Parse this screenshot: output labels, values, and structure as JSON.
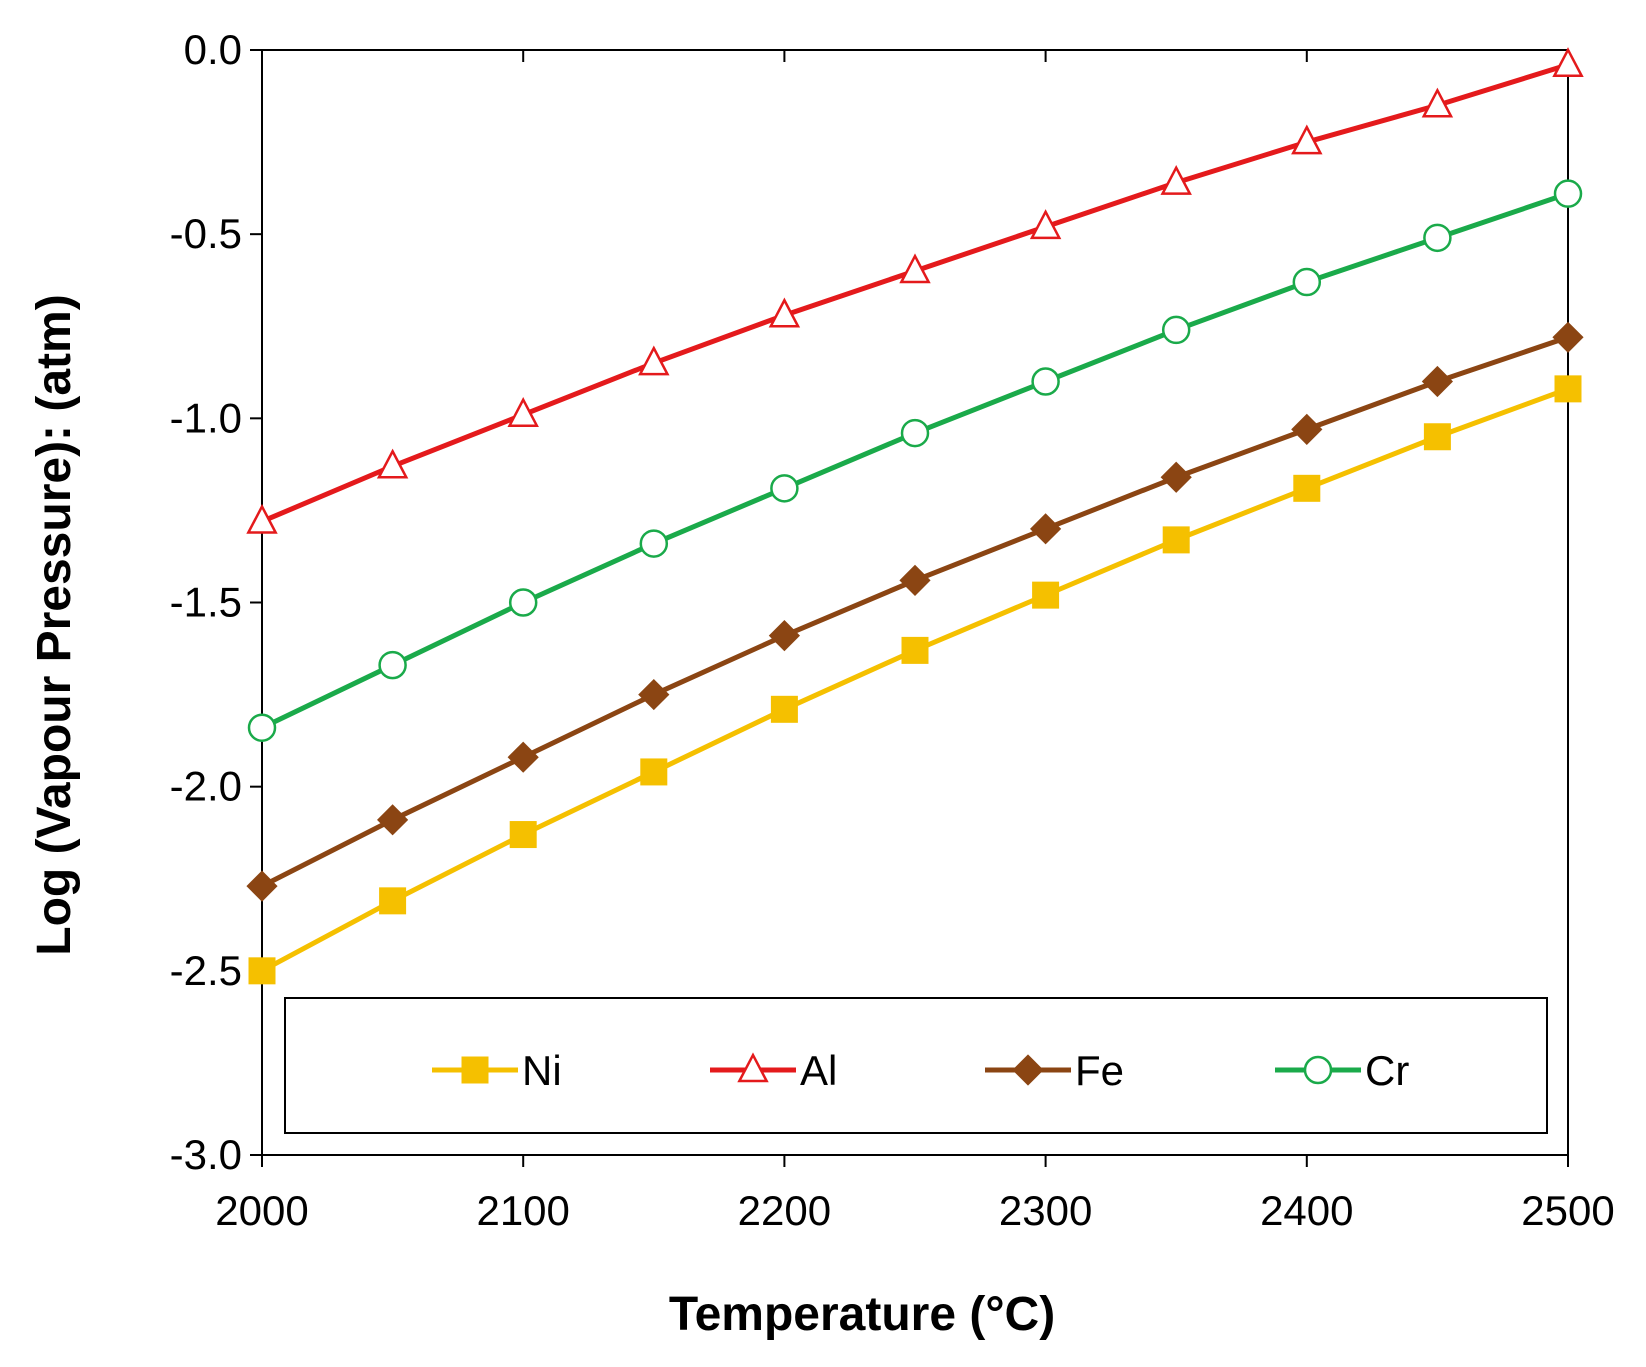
{
  "chart_data": {
    "type": "line",
    "title": "",
    "xlabel": "Temperature (°C)",
    "ylabel": "Log (Vapour Pressure): (atm)",
    "xlim": [
      2000,
      2500
    ],
    "ylim": [
      -3.0,
      0.0
    ],
    "x": [
      2000,
      2050,
      2100,
      2150,
      2200,
      2250,
      2300,
      2350,
      2400,
      2450,
      2500
    ],
    "x_ticks": [
      2000,
      2100,
      2200,
      2300,
      2400,
      2500
    ],
    "y_ticks": [
      0.0,
      -0.5,
      -1.0,
      -1.5,
      -2.0,
      -2.5,
      -3.0
    ],
    "x_tick_labels": [
      "2000",
      "2100",
      "2200",
      "2300",
      "2400",
      "2500"
    ],
    "y_tick_labels": [
      "0.0",
      "-0.5",
      "-1.0",
      "-1.5",
      "-2.0",
      "-2.5",
      "-3.0"
    ],
    "grid": false,
    "legend_position": "bottom-inside",
    "series": [
      {
        "name": "Ni",
        "color": "#F5C000",
        "marker": "square",
        "values": [
          -2.5,
          -2.31,
          -2.13,
          -1.96,
          -1.79,
          -1.63,
          -1.48,
          -1.33,
          -1.19,
          -1.05,
          -0.92
        ]
      },
      {
        "name": "Al",
        "color": "#E41A1C",
        "marker": "triangle-open",
        "values": [
          -1.28,
          -1.13,
          -0.99,
          -0.85,
          -0.72,
          -0.6,
          -0.48,
          -0.36,
          -0.25,
          -0.15,
          -0.04
        ]
      },
      {
        "name": "Fe",
        "color": "#8B4513",
        "marker": "diamond",
        "values": [
          -2.27,
          -2.09,
          -1.92,
          -1.75,
          -1.59,
          -1.44,
          -1.3,
          -1.16,
          -1.03,
          -0.9,
          -0.78
        ]
      },
      {
        "name": "Cr",
        "color": "#1AAA4A",
        "marker": "circle-open",
        "values": [
          -1.84,
          -1.67,
          -1.5,
          -1.34,
          -1.19,
          -1.04,
          -0.9,
          -0.76,
          -0.63,
          -0.51,
          -0.39
        ]
      }
    ]
  }
}
